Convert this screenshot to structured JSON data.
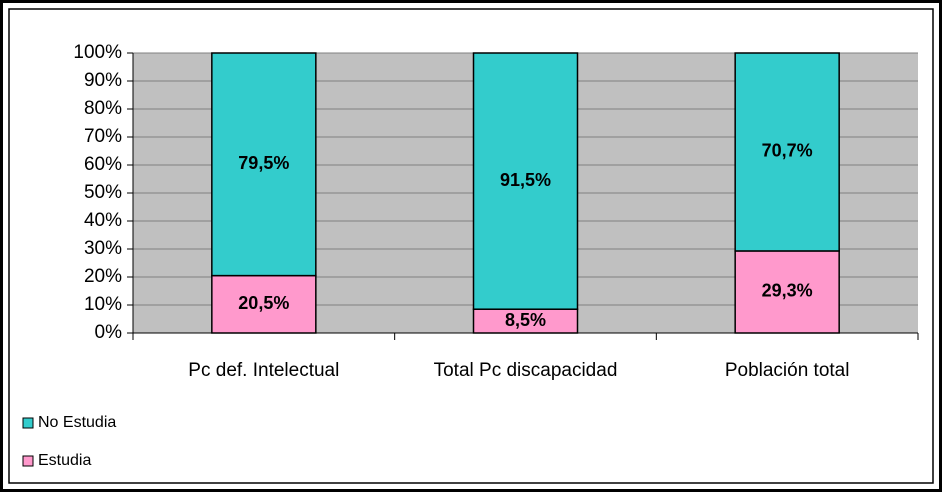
{
  "chart_data": {
    "type": "stacked_bar",
    "categories": [
      "Pc def. Intelectual",
      "Total Pc discapacidad",
      "Población total"
    ],
    "series": [
      {
        "name": "Estudia",
        "color": "#ff99cc",
        "values": [
          20.5,
          8.5,
          29.3
        ],
        "value_labels": [
          "20,5%",
          "8,5%",
          "29,3%"
        ]
      },
      {
        "name": "No Estudia",
        "color": "#33cccc",
        "values": [
          79.5,
          91.5,
          70.7
        ],
        "value_labels": [
          "79,5%",
          "91,5%",
          "70,7%"
        ]
      }
    ],
    "ylim": [
      0,
      100
    ],
    "yticks": [
      {
        "value": 0,
        "label": "0%"
      },
      {
        "value": 10,
        "label": "10%"
      },
      {
        "value": 20,
        "label": "20%"
      },
      {
        "value": 30,
        "label": "30%"
      },
      {
        "value": 40,
        "label": "40%"
      },
      {
        "value": 50,
        "label": "50%"
      },
      {
        "value": 60,
        "label": "60%"
      },
      {
        "value": 70,
        "label": "70%"
      },
      {
        "value": 80,
        "label": "80%"
      },
      {
        "value": 90,
        "label": "90%"
      },
      {
        "value": 100,
        "label": "100%"
      }
    ],
    "grid": true,
    "plot_background": "#c0c0c0",
    "legend": "bottom-left"
  }
}
